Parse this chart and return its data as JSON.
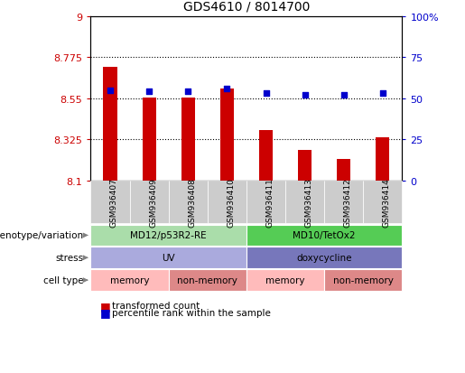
{
  "title": "GDS4610 / 8014700",
  "samples": [
    "GSM936407",
    "GSM936409",
    "GSM936408",
    "GSM936410",
    "GSM936411",
    "GSM936413",
    "GSM936412",
    "GSM936414"
  ],
  "bar_values": [
    8.72,
    8.555,
    8.555,
    8.605,
    8.375,
    8.265,
    8.22,
    8.335
  ],
  "dot_values": [
    55,
    54,
    54,
    56,
    53,
    52,
    52,
    53
  ],
  "ylim_left": [
    8.1,
    9.0
  ],
  "ylim_right": [
    0,
    100
  ],
  "yticks_left": [
    8.1,
    8.325,
    8.55,
    8.775,
    9.0
  ],
  "ytick_labels_left": [
    "8.1",
    "8.325",
    "8.55",
    "8.775",
    "9"
  ],
  "yticks_right": [
    0,
    25,
    50,
    75,
    100
  ],
  "ytick_labels_right": [
    "0",
    "25",
    "50",
    "75",
    "100%"
  ],
  "hlines": [
    8.325,
    8.55,
    8.775
  ],
  "bar_color": "#cc0000",
  "dot_color": "#0000cc",
  "bar_bottom": 8.1,
  "genotype_groups": [
    {
      "label": "MD12/p53R2-RE",
      "start": 0,
      "end": 4,
      "color": "#aaddaa"
    },
    {
      "label": "MD10/TetOx2",
      "start": 4,
      "end": 8,
      "color": "#55cc55"
    }
  ],
  "stress_groups": [
    {
      "label": "UV",
      "start": 0,
      "end": 4,
      "color": "#aaaadd"
    },
    {
      "label": "doxycycline",
      "start": 4,
      "end": 8,
      "color": "#7777bb"
    }
  ],
  "cell_type_groups": [
    {
      "label": "memory",
      "start": 0,
      "end": 2,
      "color": "#ffbbbb"
    },
    {
      "label": "non-memory",
      "start": 2,
      "end": 4,
      "color": "#dd8888"
    },
    {
      "label": "memory",
      "start": 4,
      "end": 6,
      "color": "#ffbbbb"
    },
    {
      "label": "non-memory",
      "start": 6,
      "end": 8,
      "color": "#dd8888"
    }
  ],
  "row_labels": [
    "genotype/variation",
    "stress",
    "cell type"
  ],
  "legend_items": [
    {
      "label": "transformed count",
      "color": "#cc0000"
    },
    {
      "label": "percentile rank within the sample",
      "color": "#0000cc"
    }
  ],
  "background_color": "#ffffff",
  "tick_color_left": "#cc0000",
  "tick_color_right": "#0000cc",
  "sample_box_color": "#cccccc"
}
